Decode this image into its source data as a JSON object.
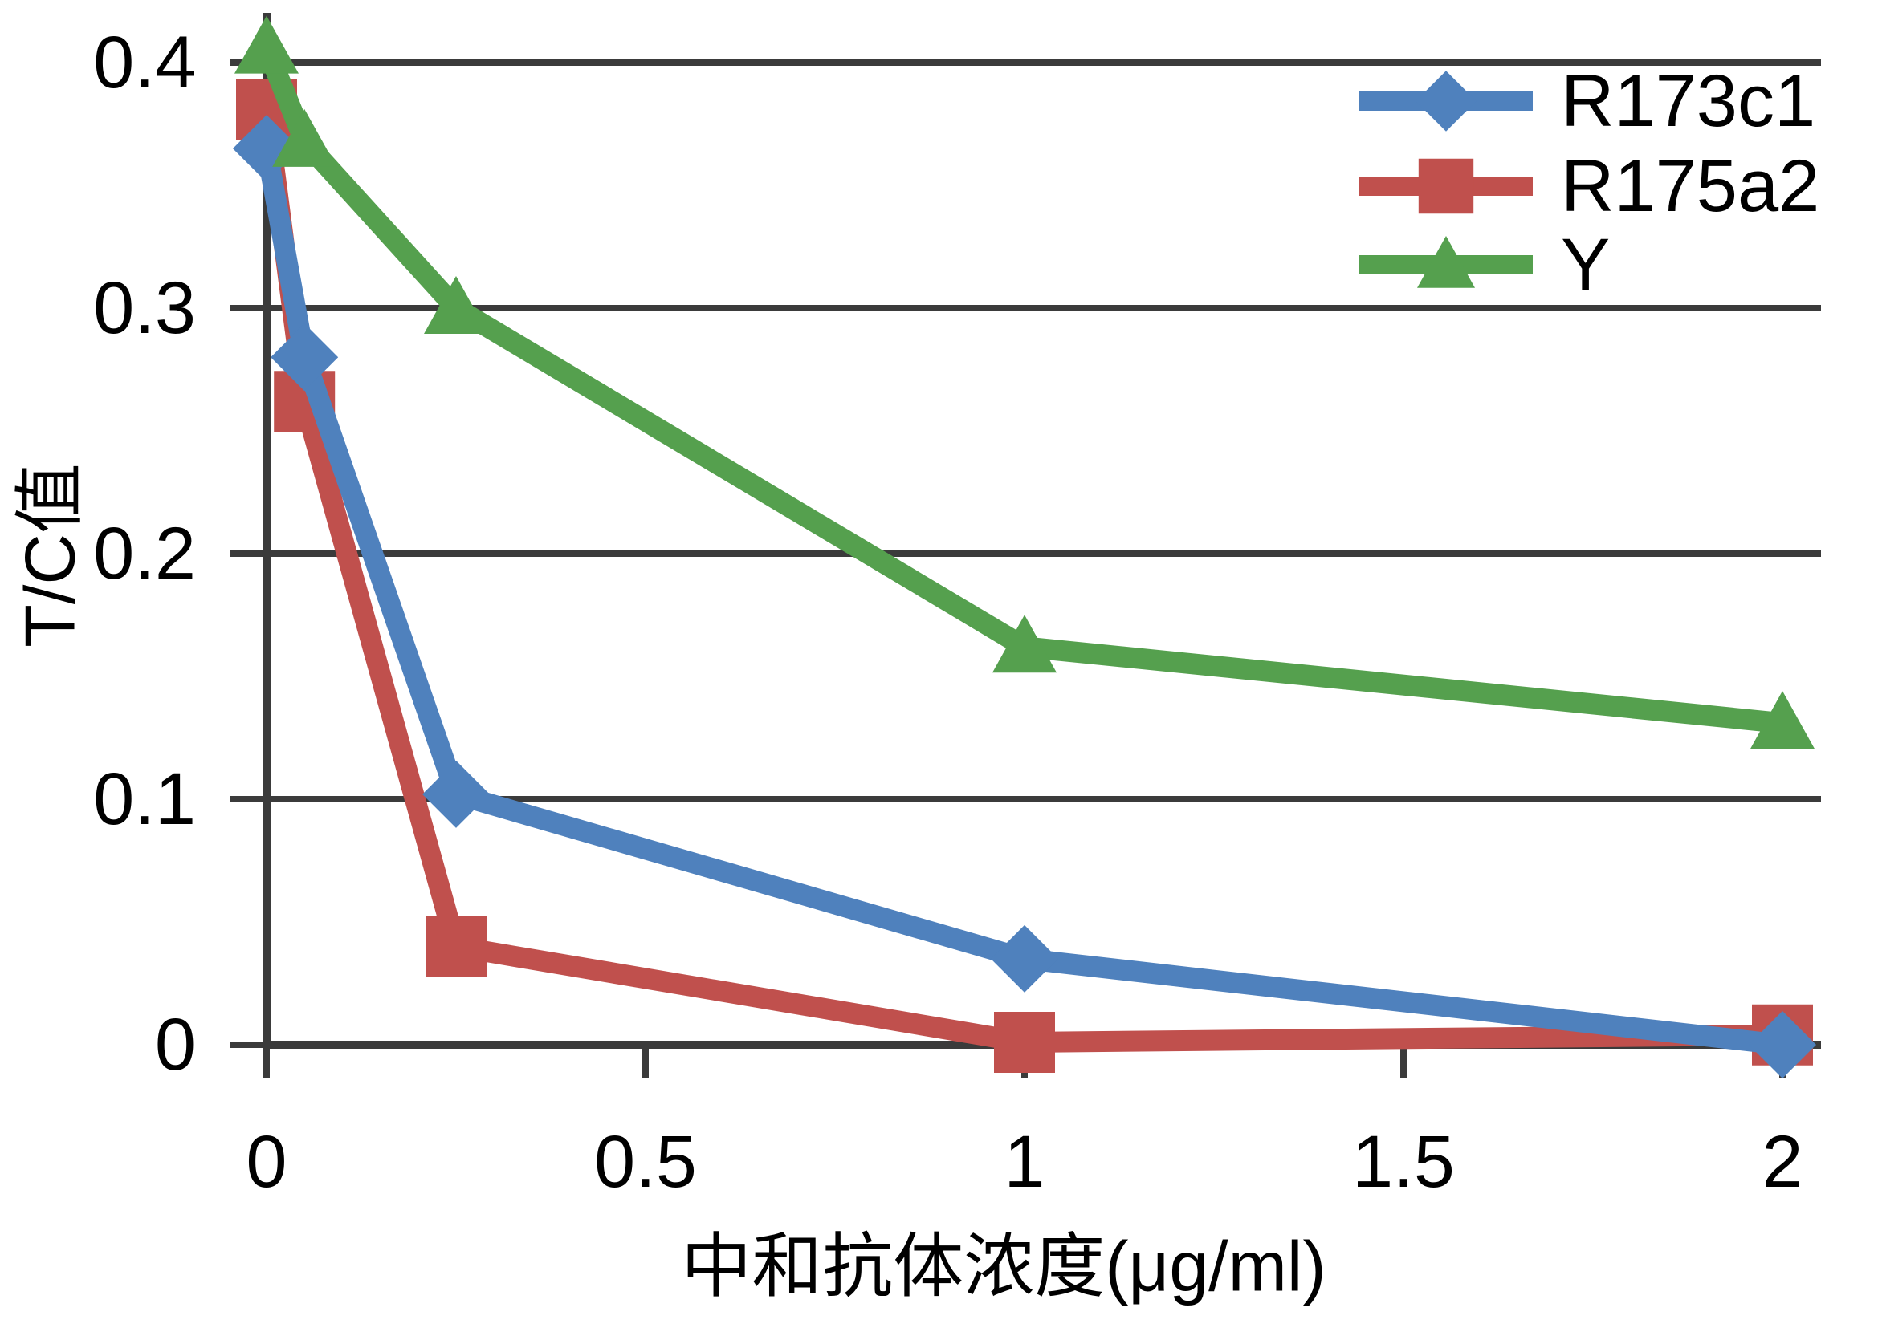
{
  "figure": {
    "background": "#FFFFFF",
    "axis_color": "#3B3B3B",
    "text_color": "#000000"
  },
  "chart_data": {
    "type": "line",
    "title": "",
    "xlabel": "中和抗体浓度(μg/ml)",
    "ylabel": "T/C值",
    "x": [
      0,
      0.05,
      0.25,
      1,
      2
    ],
    "series": [
      {
        "name": "R173c1",
        "color": "#4F81BD",
        "marker": "diamond",
        "values": [
          0.365,
          0.28,
          0.102,
          0.035,
          0.0
        ]
      },
      {
        "name": "R175a2",
        "color": "#C0504D",
        "marker": "square",
        "values": [
          0.381,
          0.262,
          0.04,
          0.001,
          0.004
        ]
      },
      {
        "name": "Y",
        "color": "#55A04E",
        "marker": "triangle",
        "values": [
          0.406,
          0.368,
          0.3,
          0.162,
          0.131
        ]
      }
    ],
    "x_ticks": {
      "values": [
        0,
        0.5,
        1,
        1.5,
        2
      ],
      "labels": [
        "0",
        "0.5",
        "1",
        "1.5",
        "2"
      ]
    },
    "y_ticks": {
      "values": [
        0,
        0.1,
        0.2,
        0.3,
        0.4
      ],
      "labels": [
        "0",
        "0.1",
        "0.2",
        "0.3",
        "0.4"
      ]
    },
    "xlim": [
      0,
      2.05
    ],
    "ylim": [
      0,
      0.42
    ],
    "grid": "horizontal",
    "legend": {
      "position": "top-right",
      "entries": [
        "R173c1",
        "R175a2",
        "Y"
      ]
    }
  }
}
